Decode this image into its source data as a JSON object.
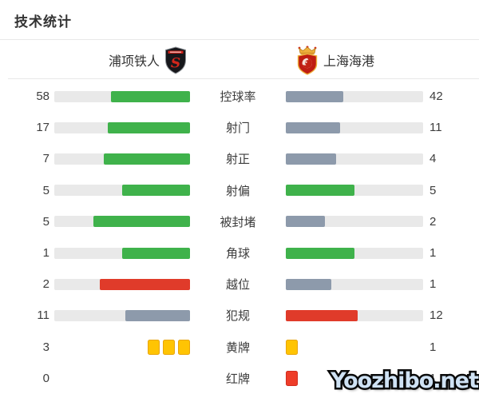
{
  "title": "技术统计",
  "teams": {
    "home": {
      "name": "浦项铁人"
    },
    "away": {
      "name": "上海海港"
    }
  },
  "colors": {
    "green": "#3fb24b",
    "slate": "#8d9aab",
    "red": "#e03b2a",
    "track": "#e9e9e9",
    "yellow_card": "#ffc403",
    "yellow_card_border": "#e9a50b",
    "red_card": "#ee3d29",
    "red_card_border": "#d12d1f"
  },
  "watermark": {
    "text": "Yoozhibo.net"
  },
  "chart_data": {
    "type": "bar",
    "title": "技术统计",
    "orientation": "mirrored-horizontal",
    "legend_position": "top",
    "categories": [
      "控球率",
      "射门",
      "射正",
      "射偏",
      "被封堵",
      "角球",
      "越位",
      "犯规",
      "黄牌",
      "红牌"
    ],
    "series": [
      {
        "name": "浦项铁人",
        "values": [
          58,
          17,
          7,
          5,
          5,
          1,
          2,
          11,
          3,
          0
        ]
      },
      {
        "name": "上海海港",
        "values": [
          42,
          11,
          4,
          5,
          2,
          1,
          1,
          12,
          1,
          1
        ]
      }
    ],
    "rows": [
      {
        "kind": "bar",
        "label": "控球率",
        "home": 58,
        "away": 42,
        "home_style": "green",
        "away_style": "slate"
      },
      {
        "kind": "bar",
        "label": "射门",
        "home": 17,
        "away": 11,
        "home_style": "green",
        "away_style": "slate"
      },
      {
        "kind": "bar",
        "label": "射正",
        "home": 7,
        "away": 4,
        "home_style": "green",
        "away_style": "slate"
      },
      {
        "kind": "bar",
        "label": "射偏",
        "home": 5,
        "away": 5,
        "home_style": "green",
        "away_style": "green"
      },
      {
        "kind": "bar",
        "label": "被封堵",
        "home": 5,
        "away": 2,
        "home_style": "green",
        "away_style": "slate"
      },
      {
        "kind": "bar",
        "label": "角球",
        "home": 1,
        "away": 1,
        "home_style": "green",
        "away_style": "green"
      },
      {
        "kind": "bar",
        "label": "越位",
        "home": 2,
        "away": 1,
        "home_style": "red",
        "away_style": "slate"
      },
      {
        "kind": "bar",
        "label": "犯规",
        "home": 11,
        "away": 12,
        "home_style": "slate",
        "away_style": "red"
      },
      {
        "kind": "cards",
        "label": "黄牌",
        "home": 3,
        "away": 1,
        "card_style": "yellow",
        "home_display": "3",
        "away_display": "1"
      },
      {
        "kind": "cards",
        "label": "红牌",
        "home": 0,
        "away": 1,
        "card_style": "red",
        "home_display": "0",
        "away_display": "1"
      }
    ]
  }
}
